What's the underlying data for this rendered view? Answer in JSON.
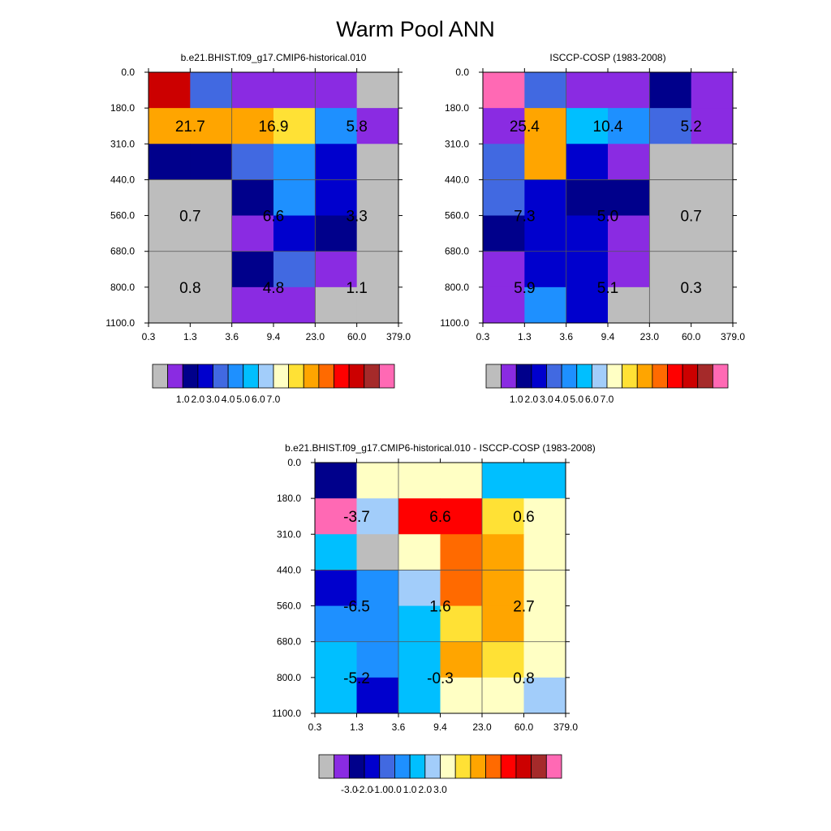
{
  "title": "Warm Pool ANN",
  "palette": {
    "gray": "#bdbdbd",
    "violet": "#8a2be2",
    "navy": "#00008b",
    "blue": "#0000cd",
    "royal": "#4169e1",
    "dodger": "#1e90ff",
    "deepsky": "#00bfff",
    "lightblue": "#a2cdfa",
    "cream": "#ffffc4",
    "yellow": "#ffe135",
    "orange": "#ffa500",
    "darkorange": "#ff6a00",
    "red": "#ff0000",
    "crimson": "#cc0000",
    "brick": "#a52a2a",
    "pink": "#ff69b4"
  },
  "chart_data": [
    {
      "type": "heatmap",
      "id": "model",
      "title": "b.e21.BHIST.f09_g17.CMIP6-historical.010",
      "x_ticks": [
        "0.3",
        "1.3",
        "3.6",
        "9.4",
        "23.0",
        "60.0",
        "379.0"
      ],
      "y_ticks": [
        "0.0",
        "180.0",
        "310.0",
        "440.0",
        "560.0",
        "680.0",
        "800.0",
        "1100.0"
      ],
      "cells": [
        [
          "crimson",
          "royal",
          "violet",
          "violet",
          "violet",
          "gray"
        ],
        [
          "orange",
          "orange",
          "orange",
          "yellow",
          "dodger",
          "violet"
        ],
        [
          "navy",
          "navy",
          "royal",
          "dodger",
          "blue",
          "gray"
        ],
        [
          "gray",
          "gray",
          "navy",
          "dodger",
          "blue",
          "gray"
        ],
        [
          "gray",
          "gray",
          "violet",
          "blue",
          "navy",
          "gray"
        ],
        [
          "gray",
          "gray",
          "navy",
          "royal",
          "violet",
          "gray"
        ],
        [
          "gray",
          "gray",
          "violet",
          "violet",
          "gray",
          "gray"
        ]
      ],
      "labels": [
        {
          "text": "21.7",
          "col": 0,
          "row": 1
        },
        {
          "text": "16.9",
          "col": 1,
          "row": 1
        },
        {
          "text": "5.8",
          "col": 2,
          "row": 1
        },
        {
          "text": "0.7",
          "col": 0,
          "row": 2
        },
        {
          "text": "6.6",
          "col": 1,
          "row": 2
        },
        {
          "text": "3.3",
          "col": 2,
          "row": 2
        },
        {
          "text": "0.8",
          "col": 0,
          "row": 3
        },
        {
          "text": "4.8",
          "col": 1,
          "row": 3
        },
        {
          "text": "1.1",
          "col": 2,
          "row": 3
        }
      ],
      "colorbar": {
        "colors": [
          "gray",
          "violet",
          "navy",
          "blue",
          "royal",
          "dodger",
          "deepsky",
          "lightblue",
          "cream",
          "yellow",
          "orange",
          "darkorange",
          "red",
          "crimson",
          "brick",
          "pink"
        ],
        "labels": [
          "1.0",
          "2.0",
          "3.0",
          "4.0",
          "5.0",
          "6.0",
          "7.0"
        ]
      }
    },
    {
      "type": "heatmap",
      "id": "obs",
      "title": "ISCCP-COSP (1983-2008)",
      "x_ticks": [
        "0.3",
        "1.3",
        "3.6",
        "9.4",
        "23.0",
        "60.0",
        "379.0"
      ],
      "y_ticks": [
        "0.0",
        "180.0",
        "310.0",
        "440.0",
        "560.0",
        "680.0",
        "800.0",
        "1100.0"
      ],
      "cells": [
        [
          "pink",
          "royal",
          "violet",
          "violet",
          "navy",
          "violet"
        ],
        [
          "violet",
          "orange",
          "deepsky",
          "dodger",
          "royal",
          "violet"
        ],
        [
          "royal",
          "orange",
          "blue",
          "violet",
          "gray",
          "gray"
        ],
        [
          "royal",
          "blue",
          "navy",
          "navy",
          "gray",
          "gray"
        ],
        [
          "navy",
          "blue",
          "blue",
          "violet",
          "gray",
          "gray"
        ],
        [
          "violet",
          "blue",
          "blue",
          "violet",
          "gray",
          "gray"
        ],
        [
          "violet",
          "dodger",
          "blue",
          "gray",
          "gray",
          "gray"
        ]
      ],
      "labels": [
        {
          "text": "25.4",
          "col": 0,
          "row": 1
        },
        {
          "text": "10.4",
          "col": 1,
          "row": 1
        },
        {
          "text": "5.2",
          "col": 2,
          "row": 1
        },
        {
          "text": "7.3",
          "col": 0,
          "row": 2
        },
        {
          "text": "5.0",
          "col": 1,
          "row": 2
        },
        {
          "text": "0.7",
          "col": 2,
          "row": 2
        },
        {
          "text": "5.9",
          "col": 0,
          "row": 3
        },
        {
          "text": "5.1",
          "col": 1,
          "row": 3
        },
        {
          "text": "0.3",
          "col": 2,
          "row": 3
        }
      ],
      "colorbar": {
        "colors": [
          "gray",
          "violet",
          "navy",
          "blue",
          "royal",
          "dodger",
          "deepsky",
          "lightblue",
          "cream",
          "yellow",
          "orange",
          "darkorange",
          "red",
          "crimson",
          "brick",
          "pink"
        ],
        "labels": [
          "1.0",
          "2.0",
          "3.0",
          "4.0",
          "5.0",
          "6.0",
          "7.0"
        ]
      }
    },
    {
      "type": "heatmap",
      "id": "diff",
      "title": "b.e21.BHIST.f09_g17.CMIP6-historical.010 - ISCCP-COSP (1983-2008)",
      "x_ticks": [
        "0.3",
        "1.3",
        "3.6",
        "9.4",
        "23.0",
        "60.0",
        "379.0"
      ],
      "y_ticks": [
        "0.0",
        "180.0",
        "310.0",
        "440.0",
        "560.0",
        "680.0",
        "800.0",
        "1100.0"
      ],
      "cells": [
        [
          "navy",
          "cream",
          "cream",
          "cream",
          "deepsky",
          "deepsky"
        ],
        [
          "pink",
          "lightblue",
          "red",
          "red",
          "yellow",
          "cream"
        ],
        [
          "deepsky",
          "gray",
          "cream",
          "darkorange",
          "orange",
          "cream"
        ],
        [
          "blue",
          "dodger",
          "lightblue",
          "darkorange",
          "orange",
          "cream"
        ],
        [
          "dodger",
          "dodger",
          "deepsky",
          "yellow",
          "orange",
          "cream"
        ],
        [
          "deepsky",
          "dodger",
          "deepsky",
          "orange",
          "yellow",
          "cream"
        ],
        [
          "deepsky",
          "blue",
          "deepsky",
          "cream",
          "cream",
          "lightblue"
        ]
      ],
      "labels": [
        {
          "text": "-3.7",
          "col": 0,
          "row": 1
        },
        {
          "text": "6.6",
          "col": 1,
          "row": 1
        },
        {
          "text": "0.6",
          "col": 2,
          "row": 1
        },
        {
          "text": "-6.5",
          "col": 0,
          "row": 2
        },
        {
          "text": "1.6",
          "col": 1,
          "row": 2
        },
        {
          "text": "2.7",
          "col": 2,
          "row": 2
        },
        {
          "text": "-5.2",
          "col": 0,
          "row": 3
        },
        {
          "text": "-0.3",
          "col": 1,
          "row": 3
        },
        {
          "text": "0.8",
          "col": 2,
          "row": 3
        }
      ],
      "colorbar": {
        "colors": [
          "gray",
          "violet",
          "navy",
          "blue",
          "royal",
          "dodger",
          "deepsky",
          "lightblue",
          "cream",
          "yellow",
          "orange",
          "darkorange",
          "red",
          "crimson",
          "brick",
          "pink"
        ],
        "labels": [
          "-3.0",
          "-2.0",
          "-1.0",
          "0.0",
          "1.0",
          "2.0",
          "3.0"
        ]
      }
    }
  ]
}
